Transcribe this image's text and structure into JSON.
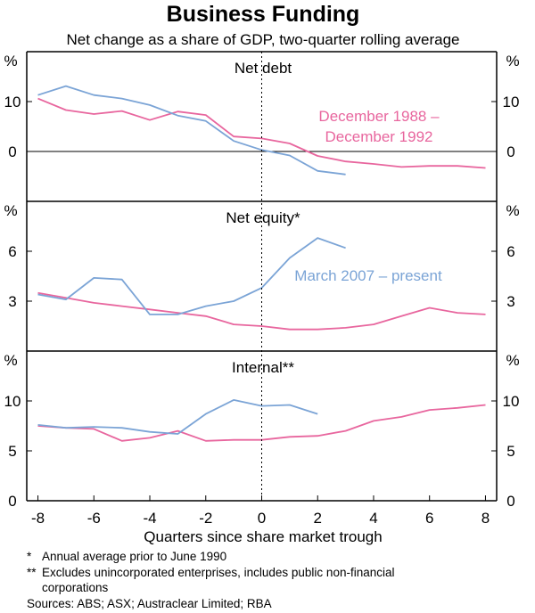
{
  "chart_data": {
    "type": "line",
    "title": "Business Funding",
    "subtitle": "Net change as a share of GDP, two-quarter rolling average",
    "xlabel": "Quarters since share market trough",
    "xlim": [
      -8.4,
      8.4
    ],
    "xticks": [
      -8,
      -6,
      -4,
      -2,
      0,
      2,
      4,
      6,
      8
    ],
    "xtick_labels": [
      "-8",
      "-6",
      "-4",
      "-2",
      "0",
      "2",
      "4",
      "6",
      "8"
    ],
    "unit_label": "%",
    "colors": {
      "series_1988": "#e8669e",
      "series_2007": "#7ba4d6",
      "axis": "#000000",
      "trough_line": "#000000"
    },
    "series_names": [
      "December 1988 – December 1992",
      "March 2007 – present"
    ],
    "panels": [
      {
        "title": "Net debt",
        "ylim": [
          -10,
          20
        ],
        "yticks": [
          0,
          10
        ],
        "ytick_labels": [
          "0",
          "10"
        ],
        "bottom_tick_label": "",
        "zero_line": true,
        "annotation": {
          "lines": [
            "December 1988 –",
            "December 1992"
          ],
          "series": "series_1988"
        },
        "series": [
          {
            "name": "December 1988 – December 1992",
            "color_key": "series_1988",
            "x": [
              -8,
              -7,
              -6,
              -5,
              -4,
              -3,
              -2,
              -1,
              0,
              1,
              2,
              3,
              4,
              5,
              6,
              7,
              8
            ],
            "values": [
              10.6,
              8.3,
              7.5,
              8.1,
              6.3,
              8.0,
              7.3,
              3.0,
              2.6,
              1.6,
              -0.9,
              -2.0,
              -2.5,
              -3.1,
              -2.9,
              -2.9,
              -3.3
            ]
          },
          {
            "name": "March 2007 – present",
            "color_key": "series_2007",
            "x": [
              -8,
              -7,
              -6,
              -5,
              -4,
              -3,
              -2,
              -1,
              0,
              1,
              2,
              3
            ],
            "values": [
              11.3,
              13.1,
              11.3,
              10.6,
              9.3,
              7.2,
              6.1,
              2.1,
              0.3,
              -0.8,
              -3.9,
              -4.6
            ]
          }
        ]
      },
      {
        "title": "Net equity*",
        "ylim": [
          0,
          9
        ],
        "yticks": [
          3,
          6
        ],
        "ytick_labels": [
          "3",
          "6"
        ],
        "bottom_tick_label": "",
        "zero_line": false,
        "annotation": {
          "lines": [
            "March 2007 – present"
          ],
          "series": "series_2007"
        },
        "series": [
          {
            "name": "December 1988 – December 1992",
            "color_key": "series_1988",
            "x": [
              -8,
              -7,
              -6,
              -5,
              -4,
              -3,
              -2,
              -1,
              0,
              1,
              2,
              3,
              4,
              5,
              6,
              7,
              8
            ],
            "values": [
              3.5,
              3.2,
              2.9,
              2.7,
              2.5,
              2.3,
              2.1,
              1.6,
              1.5,
              1.3,
              1.3,
              1.4,
              1.6,
              2.1,
              2.6,
              2.3,
              2.2
            ]
          },
          {
            "name": "March 2007 – present",
            "color_key": "series_2007",
            "x": [
              -8,
              -7,
              -6,
              -5,
              -4,
              -3,
              -2,
              -1,
              0,
              1,
              2,
              3
            ],
            "values": [
              3.4,
              3.1,
              4.4,
              4.3,
              2.2,
              2.2,
              2.7,
              3.0,
              3.8,
              5.6,
              6.8,
              6.2
            ]
          }
        ]
      },
      {
        "title": "Internal**",
        "ylim": [
          0,
          15
        ],
        "yticks": [
          5,
          10
        ],
        "ytick_labels": [
          "5",
          "10"
        ],
        "bottom_tick_label": "0",
        "zero_line": false,
        "annotation": null,
        "series": [
          {
            "name": "December 1988 – December 1992",
            "color_key": "series_1988",
            "x": [
              -8,
              -7,
              -6,
              -5,
              -4,
              -3,
              -2,
              -1,
              0,
              1,
              2,
              3,
              4,
              5,
              6,
              7,
              8
            ],
            "values": [
              7.5,
              7.3,
              7.2,
              6.0,
              6.3,
              7.0,
              6.0,
              6.1,
              6.1,
              6.4,
              6.5,
              7.0,
              8.0,
              8.4,
              9.1,
              9.3,
              9.6
            ]
          },
          {
            "name": "March 2007 – present",
            "color_key": "series_2007",
            "x": [
              -8,
              -7,
              -6,
              -5,
              -4,
              -3,
              -2,
              -1,
              0,
              1,
              2
            ],
            "values": [
              7.6,
              7.3,
              7.4,
              7.3,
              6.9,
              6.7,
              8.7,
              10.1,
              9.5,
              9.6,
              8.7
            ]
          }
        ]
      }
    ],
    "footnotes": [
      {
        "marker": "*",
        "text": "Annual average prior to June 1990"
      },
      {
        "marker": "**",
        "text": "Excludes unincorporated enterprises, includes public non-financial"
      },
      {
        "marker": "",
        "text": "corporations"
      }
    ],
    "sources": "Sources: ABS; ASX; Austraclear Limited; RBA"
  }
}
